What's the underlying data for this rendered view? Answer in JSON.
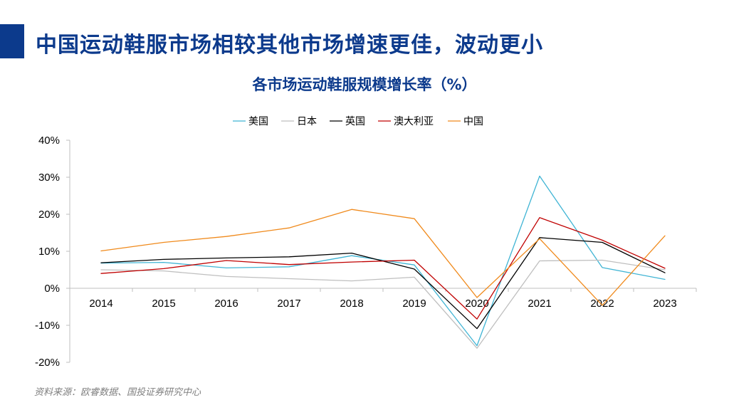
{
  "slide_title": "中国运动鞋服市场相较其他市场增速更佳，波动更小",
  "source_note": "资料来源：欧睿数据、国投证券研究中心",
  "colors": {
    "accent": "#0c3a8c",
    "axis": "#bfbfbf"
  },
  "chart_data": {
    "type": "line",
    "title": "各市场运动鞋服规模增长率（%）",
    "xlabel": "",
    "ylabel": "",
    "categories": [
      "2014",
      "2015",
      "2016",
      "2017",
      "2018",
      "2019",
      "2020",
      "2021",
      "2022",
      "2023"
    ],
    "ylim": [
      -20,
      40
    ],
    "yticks": [
      -20,
      -10,
      0,
      10,
      20,
      30,
      40
    ],
    "ytick_labels": [
      "-20%",
      "-10%",
      "0%",
      "10%",
      "20%",
      "30%",
      "40%"
    ],
    "grid": false,
    "legend_position": "top-center",
    "series": [
      {
        "name": "美国",
        "color": "#3fb4d4",
        "values": [
          6.8,
          7.0,
          5.5,
          5.8,
          8.8,
          6.3,
          -15.5,
          30.3,
          5.6,
          2.4
        ]
      },
      {
        "name": "日本",
        "color": "#bfbfbf",
        "values": [
          5.0,
          4.7,
          3.2,
          2.6,
          2.0,
          3.0,
          -16.2,
          7.4,
          7.6,
          5.0
        ]
      },
      {
        "name": "英国",
        "color": "#000000",
        "values": [
          6.9,
          7.8,
          8.2,
          8.5,
          9.5,
          5.2,
          -10.9,
          13.7,
          12.4,
          4.2
        ]
      },
      {
        "name": "澳大利亚",
        "color": "#c00000",
        "values": [
          4.0,
          5.3,
          7.5,
          6.4,
          7.1,
          7.6,
          -8.3,
          19.1,
          13.0,
          5.4
        ]
      },
      {
        "name": "中国",
        "color": "#f08a1c",
        "values": [
          10.1,
          12.4,
          14.0,
          16.3,
          21.3,
          18.8,
          -2.5,
          13.4,
          -4.6,
          14.2
        ]
      }
    ]
  }
}
